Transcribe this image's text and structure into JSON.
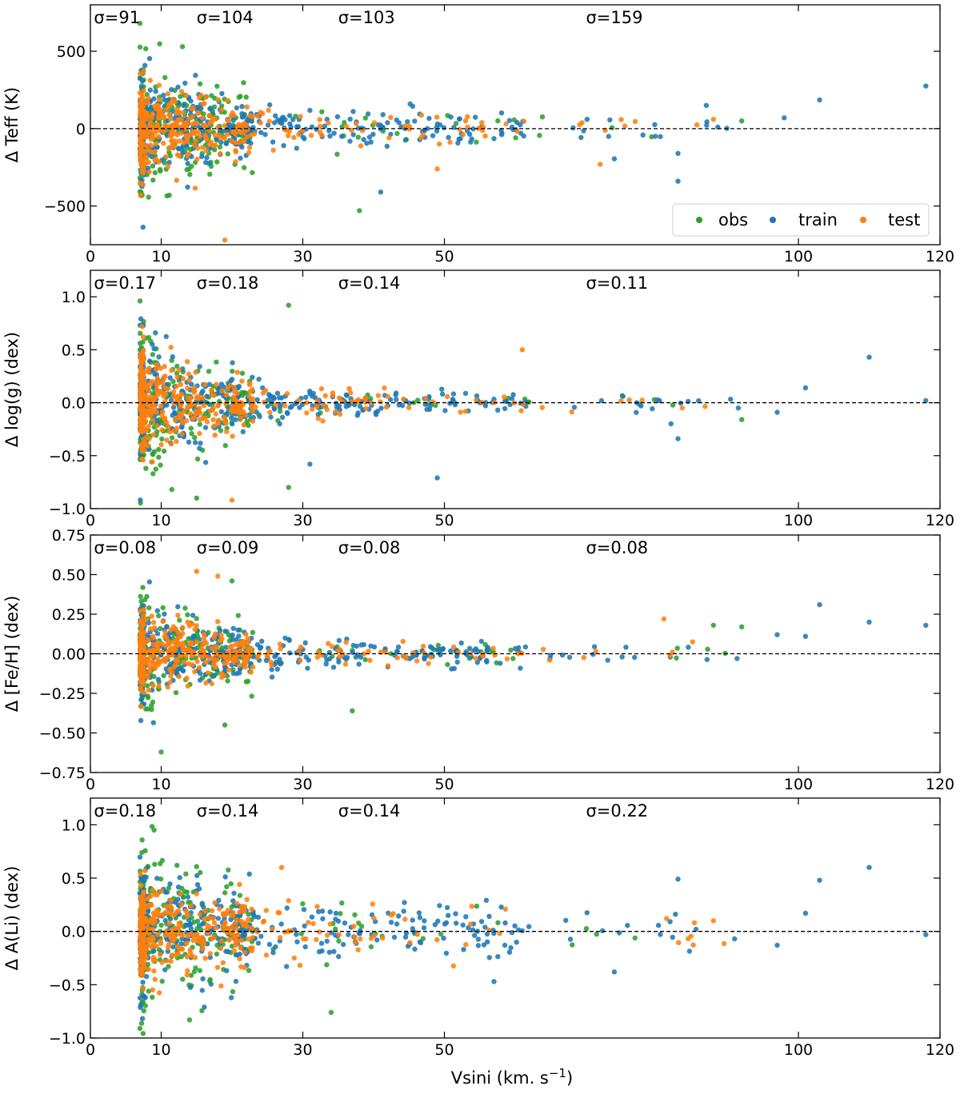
{
  "figure": {
    "xlabel": "Vsini (km. s",
    "xlabel_sup": "−1",
    "xlabel_end": ")"
  },
  "legend": {
    "placement": "bottom-right of top panel",
    "entries": [
      {
        "name": "obs",
        "color": "#2ca02c"
      },
      {
        "name": "train",
        "color": "#1f77b4"
      },
      {
        "name": "test",
        "color": "#ff7f0e"
      }
    ]
  },
  "chart_data": [
    {
      "type": "scatter",
      "ylabel": "Δ Teff (K)",
      "xlim": [
        0,
        120
      ],
      "ylim": [
        -750,
        800
      ],
      "yticks": [
        500,
        0,
        -500
      ],
      "ytick_labels": [
        "500",
        "0",
        "−500"
      ],
      "xticks": [
        0,
        10,
        30,
        50,
        100,
        120
      ],
      "sigma_labels": [
        {
          "text": "σ=91",
          "x": 0.5
        },
        {
          "text": "σ=104",
          "x": 15
        },
        {
          "text": "σ=103",
          "x": 35
        },
        {
          "text": "σ=159",
          "x": 70
        }
      ],
      "reference_line": 0,
      "spread": 180,
      "decay_scale": 14,
      "floor": 0.28,
      "sample_points": [
        {
          "series": "train",
          "x": 118,
          "y": 275
        },
        {
          "series": "train",
          "x": 103,
          "y": 185
        },
        {
          "series": "train",
          "x": 87,
          "y": 150
        },
        {
          "series": "train",
          "x": 83,
          "y": -160
        },
        {
          "series": "train",
          "x": 83,
          "y": -340
        },
        {
          "series": "test",
          "x": 72,
          "y": -230
        },
        {
          "series": "train",
          "x": 74,
          "y": -195
        },
        {
          "series": "obs",
          "x": 7,
          "y": 680
        },
        {
          "series": "obs",
          "x": 13,
          "y": 530
        },
        {
          "series": "test",
          "x": 19,
          "y": -720
        },
        {
          "series": "obs",
          "x": 38,
          "y": -530
        },
        {
          "series": "train",
          "x": 41,
          "y": -410
        },
        {
          "series": "test",
          "x": 49,
          "y": -260
        },
        {
          "series": "train",
          "x": 98,
          "y": 70
        },
        {
          "series": "obs",
          "x": 92,
          "y": 50
        },
        {
          "series": "test",
          "x": 88,
          "y": 60
        }
      ]
    },
    {
      "type": "scatter",
      "ylabel": "Δ log(g) (dex)",
      "xlim": [
        0,
        120
      ],
      "ylim": [
        -1.0,
        1.25
      ],
      "yticks": [
        1.0,
        0.5,
        0.0,
        -0.5,
        -1.0
      ],
      "ytick_labels": [
        "1.0",
        "0.5",
        "0.0",
        "−0.5",
        "−1.0"
      ],
      "xticks": [
        0,
        10,
        30,
        50,
        100,
        120
      ],
      "sigma_labels": [
        {
          "text": "σ=0.17",
          "x": 0.5
        },
        {
          "text": "σ=0.18",
          "x": 15
        },
        {
          "text": "σ=0.14",
          "x": 35
        },
        {
          "text": "σ=0.11",
          "x": 70
        }
      ],
      "reference_line": 0,
      "spread": 0.32,
      "decay_scale": 12,
      "floor": 0.16,
      "sample_points": [
        {
          "series": "train",
          "x": 110,
          "y": 0.43
        },
        {
          "series": "train",
          "x": 101,
          "y": 0.14
        },
        {
          "series": "train",
          "x": 118,
          "y": 0.02
        },
        {
          "series": "train",
          "x": 83,
          "y": -0.34
        },
        {
          "series": "train",
          "x": 82,
          "y": -0.2
        },
        {
          "series": "train",
          "x": 49,
          "y": -0.71
        },
        {
          "series": "train",
          "x": 31,
          "y": -0.58
        },
        {
          "series": "test",
          "x": 61,
          "y": 0.5
        },
        {
          "series": "obs",
          "x": 28,
          "y": 0.92
        },
        {
          "series": "obs",
          "x": 28,
          "y": -0.8
        },
        {
          "series": "obs",
          "x": 92,
          "y": -0.16
        },
        {
          "series": "train",
          "x": 97,
          "y": -0.09
        },
        {
          "series": "test",
          "x": 20,
          "y": -0.92
        },
        {
          "series": "obs",
          "x": 15,
          "y": -0.9
        }
      ]
    },
    {
      "type": "scatter",
      "ylabel": "Δ [Fe/H] (dex)",
      "xlim": [
        0,
        120
      ],
      "ylim": [
        -0.75,
        0.75
      ],
      "yticks": [
        0.75,
        0.5,
        0.25,
        0.0,
        -0.25,
        -0.5,
        -0.75
      ],
      "ytick_labels": [
        "0.75",
        "0.50",
        "0.25",
        "0.00",
        "−0.25",
        "−0.50",
        "−0.75"
      ],
      "xticks": [
        0,
        10,
        30,
        50,
        100,
        120
      ],
      "sigma_labels": [
        {
          "text": "σ=0.08",
          "x": 0.5
        },
        {
          "text": "σ=0.09",
          "x": 15
        },
        {
          "text": "σ=0.08",
          "x": 35
        },
        {
          "text": "σ=0.08",
          "x": 70
        }
      ],
      "reference_line": 0,
      "spread": 0.15,
      "decay_scale": 14,
      "floor": 0.25,
      "sample_points": [
        {
          "series": "train",
          "x": 103,
          "y": 0.31
        },
        {
          "series": "train",
          "x": 110,
          "y": 0.2
        },
        {
          "series": "train",
          "x": 118,
          "y": 0.18
        },
        {
          "series": "obs",
          "x": 92,
          "y": 0.17
        },
        {
          "series": "obs",
          "x": 88,
          "y": 0.18
        },
        {
          "series": "test",
          "x": 81,
          "y": 0.22
        },
        {
          "series": "train",
          "x": 97,
          "y": 0.12
        },
        {
          "series": "train",
          "x": 101,
          "y": 0.11
        },
        {
          "series": "obs",
          "x": 10,
          "y": -0.62
        },
        {
          "series": "obs",
          "x": 37,
          "y": -0.36
        },
        {
          "series": "obs",
          "x": 19,
          "y": -0.45
        },
        {
          "series": "test",
          "x": 15,
          "y": 0.52
        },
        {
          "series": "test",
          "x": 18,
          "y": 0.49
        },
        {
          "series": "obs",
          "x": 20,
          "y": 0.46
        }
      ]
    },
    {
      "type": "scatter",
      "ylabel": "Δ A(Li) (dex)",
      "xlim": [
        0,
        120
      ],
      "ylim": [
        -1.0,
        1.25
      ],
      "yticks": [
        1.0,
        0.5,
        0.0,
        -0.5,
        -1.0
      ],
      "ytick_labels": [
        "1.0",
        "0.5",
        "0.0",
        "−0.5",
        "−1.0"
      ],
      "xticks": [
        0,
        10,
        30,
        50,
        100,
        120
      ],
      "sigma_labels": [
        {
          "text": "σ=0.18",
          "x": 0.5
        },
        {
          "text": "σ=0.14",
          "x": 15
        },
        {
          "text": "σ=0.14",
          "x": 35
        },
        {
          "text": "σ=0.22",
          "x": 70
        }
      ],
      "reference_line": 0,
      "spread": 0.3,
      "decay_scale": 16,
      "floor": 0.38,
      "sample_points": [
        {
          "series": "train",
          "x": 110,
          "y": 0.6
        },
        {
          "series": "train",
          "x": 103,
          "y": 0.48
        },
        {
          "series": "train",
          "x": 83,
          "y": 0.49
        },
        {
          "series": "train",
          "x": 101,
          "y": 0.17
        },
        {
          "series": "train",
          "x": 118,
          "y": -0.03
        },
        {
          "series": "train",
          "x": 97,
          "y": -0.13
        },
        {
          "series": "train",
          "x": 74,
          "y": -0.38
        },
        {
          "series": "train",
          "x": 57,
          "y": -0.47
        },
        {
          "series": "obs",
          "x": 9,
          "y": 0.95
        },
        {
          "series": "obs",
          "x": 14,
          "y": -0.83
        },
        {
          "series": "obs",
          "x": 34,
          "y": -0.76
        },
        {
          "series": "test",
          "x": 27,
          "y": 0.6
        },
        {
          "series": "test",
          "x": 88,
          "y": 0.1
        },
        {
          "series": "obs",
          "x": 7,
          "y": -0.91
        }
      ]
    }
  ]
}
